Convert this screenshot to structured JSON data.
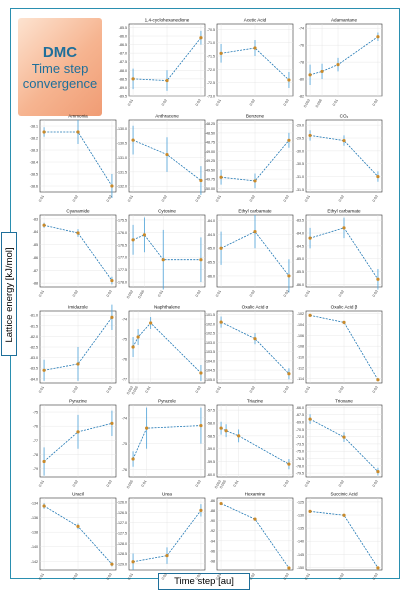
{
  "banner": {
    "main": "DMC",
    "sub1": "Time step",
    "sub2": "convergence"
  },
  "ylabel": "Lattice energy  [kJ/mol]",
  "xlabel": "Time step [au]",
  "colors": {
    "frame": "#2a8fb0",
    "line": "#1f77b4",
    "marker": "#c98a2b",
    "errorbar": "#4aa0d8",
    "banner_text": "#1f6f9a"
  },
  "chart_data": [
    {
      "type": "line",
      "title": "1,4-cyclohexanedione",
      "x": [
        "0.01",
        "0.02",
        "0.03"
      ],
      "xv": [
        0.01,
        0.02,
        0.03
      ],
      "y": [
        -88.5,
        -88.6,
        -86.1
      ],
      "err": [
        0.6,
        0.6,
        0.4
      ],
      "yticks": [
        "-85.5",
        "-86.0",
        "-86.5",
        "-87.0",
        "-87.5",
        "-88.0",
        "-88.5",
        "-89.0",
        "-89.5"
      ],
      "ylim": [
        -89.5,
        -85.3
      ]
    },
    {
      "type": "line",
      "title": "Acetic Acid",
      "x": [
        "0.01",
        "0.02",
        "0.03"
      ],
      "xv": [
        0.01,
        0.02,
        0.03
      ],
      "y": [
        -71.4,
        -71.2,
        -72.4
      ],
      "err": [
        0.35,
        0.3,
        0.3
      ],
      "yticks": [
        "-70.5",
        "-71.0",
        "-71.5",
        "-72.0",
        "-72.5",
        "-73.0"
      ],
      "ylim": [
        -73.0,
        -70.3
      ]
    },
    {
      "type": "line",
      "title": "Adamantane",
      "x": [
        "0.003",
        "0.006",
        "0.01",
        "0.02"
      ],
      "xv": [
        0.003,
        0.006,
        0.01,
        0.02
      ],
      "y": [
        -79.5,
        -79.1,
        -78.3,
        -75.0
      ],
      "err": [
        1.2,
        0.9,
        0.8,
        0.5
      ],
      "yticks": [
        "-74",
        "-76",
        "-78",
        "-80",
        "-82"
      ],
      "ylim": [
        -82,
        -73.5
      ]
    },
    {
      "type": "line",
      "title": "Ammonia",
      "x": [
        "0.01",
        "0.02",
        "0.03"
      ],
      "xv": [
        0.01,
        0.02,
        0.03
      ],
      "y": [
        -38.15,
        -38.15,
        -38.6
      ],
      "err": [
        0.04,
        0.1,
        0.1
      ],
      "yticks": [
        "-38.1",
        "-38.2",
        "-38.3",
        "-38.4",
        "-38.5",
        "-38.6"
      ],
      "ylim": [
        -38.65,
        -38.05
      ]
    },
    {
      "type": "line",
      "title": "Anthracene",
      "x": [
        "0.01",
        "0.02",
        "0.03"
      ],
      "xv": [
        0.01,
        0.02,
        0.03
      ],
      "y": [
        -130.4,
        -130.9,
        -131.8
      ],
      "err": [
        0.5,
        0.6,
        0.5
      ],
      "yticks": [
        "-130.0",
        "-130.5",
        "-131.0",
        "-131.5",
        "-132.0"
      ],
      "ylim": [
        -132.2,
        -129.7
      ]
    },
    {
      "type": "line",
      "title": "Benzene",
      "x": [
        "0.01",
        "0.02",
        "0.03"
      ],
      "xv": [
        0.01,
        0.02,
        0.03
      ],
      "y": [
        -49.7,
        -49.8,
        -48.7
      ],
      "err": [
        0.2,
        0.2,
        0.2
      ],
      "yticks": [
        "-48.25",
        "-48.50",
        "-48.75",
        "-49.00",
        "-49.25",
        "-49.50",
        "-49.75",
        "-50.00"
      ],
      "ylim": [
        -50.1,
        -48.15
      ]
    },
    {
      "type": "line",
      "title": "CO₂",
      "x": [
        "0.01",
        "0.02",
        "0.03"
      ],
      "xv": [
        0.01,
        0.02,
        0.03
      ],
      "y": [
        -29.4,
        -29.6,
        -31.0
      ],
      "err": [
        0.2,
        0.2,
        0.2
      ],
      "yticks": [
        "-29.0",
        "-29.5",
        "-30.0",
        "-30.5",
        "-31.0",
        "-31.5"
      ],
      "ylim": [
        -31.6,
        -28.8
      ]
    },
    {
      "type": "line",
      "title": "Cyanamide",
      "x": [
        "0.01",
        "0.02",
        "0.03"
      ],
      "xv": [
        0.01,
        0.02,
        0.03
      ],
      "y": [
        -83.5,
        -84.1,
        -87.8
      ],
      "err": [
        0.2,
        0.3,
        0.3
      ],
      "yticks": [
        "-83",
        "-84",
        "-85",
        "-86",
        "-87",
        "-88"
      ],
      "ylim": [
        -88.3,
        -82.7
      ]
    },
    {
      "type": "line",
      "title": "Cytosine",
      "x": [
        "0.002",
        "0.005",
        "0.01",
        "0.02"
      ],
      "xv": [
        0.002,
        0.005,
        0.01,
        0.02
      ],
      "y": [
        -176.3,
        -176.1,
        -177.1,
        -177.1
      ],
      "err": [
        0.6,
        0.7,
        1.2,
        0.9
      ],
      "yticks": [
        "-175.5",
        "-176.0",
        "-176.5",
        "-177.0",
        "-177.5",
        "-178.0"
      ],
      "ylim": [
        -178.2,
        -175.3
      ]
    },
    {
      "type": "line",
      "title": "Ethyl carbamate",
      "x": [
        "0.01",
        "0.02",
        "0.03"
      ],
      "xv": [
        0.01,
        0.02,
        0.03
      ],
      "y": [
        -85.0,
        -84.4,
        -86.0
      ],
      "err": [
        0.6,
        0.6,
        0.6
      ],
      "yticks": [
        "-84.0",
        "-84.5",
        "-85.0",
        "-85.5",
        "-86.0"
      ],
      "ylim": [
        -86.4,
        -83.8
      ]
    },
    {
      "type": "line",
      "title": "Ethyl carbamate",
      "x": [
        "0.01",
        "0.02",
        "0.03"
      ],
      "xv": [
        0.01,
        0.02,
        0.03
      ],
      "y": [
        -84.2,
        -83.8,
        -85.8
      ],
      "err": [
        0.4,
        0.4,
        0.4
      ],
      "yticks": [
        "-83.5",
        "-84.0",
        "-84.5",
        "-85.0",
        "-85.5",
        "-86.0"
      ],
      "ylim": [
        -86.1,
        -83.3
      ]
    },
    {
      "type": "line",
      "title": "Imidazole",
      "x": [
        "0.01",
        "0.02",
        "0.03"
      ],
      "xv": [
        0.01,
        0.02,
        0.03
      ],
      "y": [
        -83.6,
        -83.3,
        -81.1
      ],
      "err": [
        0.5,
        0.8,
        0.6
      ],
      "yticks": [
        "-81.0",
        "-81.5",
        "-82.0",
        "-82.5",
        "-83.0",
        "-83.5",
        "-84.0"
      ],
      "ylim": [
        -84.2,
        -80.8
      ]
    },
    {
      "type": "line",
      "title": "Naphthalene",
      "x": [
        "0.003",
        "0.005",
        "0.01",
        "0.03"
      ],
      "xv": [
        0.003,
        0.005,
        0.01,
        0.03
      ],
      "y": [
        -75.4,
        -74.9,
        -74.2,
        -76.7
      ],
      "err": [
        0.5,
        0.4,
        0.3,
        0.4
      ],
      "yticks": [
        "-74",
        "-75",
        "-76",
        "-77"
      ],
      "ylim": [
        -77.2,
        -73.6
      ]
    },
    {
      "type": "line",
      "title": "Oxalic Acid α",
      "x": [
        "0.01",
        "0.02",
        "0.03"
      ],
      "xv": [
        0.01,
        0.02,
        0.03
      ],
      "y": [
        -101.9,
        -102.8,
        -104.7
      ],
      "err": [
        0.3,
        0.3,
        0.3
      ],
      "yticks": [
        "-101.5",
        "-102.0",
        "-102.5",
        "-103.0",
        "-103.5",
        "-104.0",
        "-104.5",
        "-105.0"
      ],
      "ylim": [
        -105.2,
        -101.3
      ]
    },
    {
      "type": "line",
      "title": "Oxalic Acid β",
      "x": [
        "0.01",
        "0.02",
        "0.03"
      ],
      "xv": [
        0.01,
        0.02,
        0.03
      ],
      "y": [
        -102.3,
        -103.6,
        -114.2
      ],
      "err": [
        0.2,
        0.2,
        0.2
      ],
      "yticks": [
        "-102",
        "-104",
        "-106",
        "-108",
        "-110",
        "-112",
        "-114"
      ],
      "ylim": [
        -114.8,
        -101.5
      ]
    },
    {
      "type": "line",
      "title": "Pyrazine",
      "x": [
        "0.01",
        "0.02",
        "0.03"
      ],
      "xv": [
        0.01,
        0.02,
        0.03
      ],
      "y": [
        -78.5,
        -76.4,
        -75.8
      ],
      "err": [
        1.0,
        1.2,
        0.9
      ],
      "yticks": [
        "-75",
        "-76",
        "-77",
        "-78",
        "-79"
      ],
      "ylim": [
        -79.6,
        -74.5
      ]
    },
    {
      "type": "line",
      "title": "Pyrazole",
      "x": [
        "0.005",
        "0.01",
        "0.03"
      ],
      "xv": [
        0.005,
        0.01,
        0.03
      ],
      "y": [
        -75.6,
        -74.4,
        -74.3
      ],
      "err": [
        0.3,
        0.8,
        0.7
      ],
      "yticks": [
        "-74",
        "-75",
        "-76"
      ],
      "ylim": [
        -76.3,
        -73.5
      ]
    },
    {
      "type": "line",
      "title": "Triazine",
      "x": [
        "0.003",
        "0.005",
        "0.01",
        "0.03"
      ],
      "xv": [
        0.003,
        0.005,
        0.01,
        0.03
      ],
      "y": [
        -58.2,
        -58.3,
        -58.5,
        -59.6
      ],
      "err": [
        0.25,
        0.25,
        0.25,
        0.2
      ],
      "yticks": [
        "-57.5",
        "-58.0",
        "-58.5",
        "-59.0",
        "-59.5",
        "-60.0"
      ],
      "ylim": [
        -60.1,
        -57.3
      ]
    },
    {
      "type": "line",
      "title": "Trioxane",
      "x": [
        "0.01",
        "0.02",
        "0.03"
      ],
      "xv": [
        0.01,
        0.02,
        0.03
      ],
      "y": [
        -68.4,
        -72.1,
        -79.2
      ],
      "err": [
        1.0,
        1.0,
        0.8
      ],
      "yticks": [
        "-66.0",
        "-67.5",
        "-69.0",
        "-70.5",
        "-72.0",
        "-73.5",
        "-75.0",
        "-76.5",
        "-78.0",
        "-79.5"
      ],
      "ylim": [
        -80.3,
        -65.5
      ]
    },
    {
      "type": "line",
      "title": "Uracil",
      "x": [
        "0.01",
        "0.02",
        "0.03"
      ],
      "xv": [
        0.01,
        0.02,
        0.03
      ],
      "y": [
        -134.4,
        -137.2,
        -142.4
      ],
      "err": [
        0.4,
        0.4,
        0.3
      ],
      "yticks": [
        "-134",
        "-136",
        "-138",
        "-140",
        "-142"
      ],
      "ylim": [
        -143.2,
        -133.3
      ]
    },
    {
      "type": "line",
      "title": "Urea",
      "x": [
        "0.01",
        "0.02",
        "0.03"
      ],
      "xv": [
        0.01,
        0.02,
        0.03
      ],
      "y": [
        -128.9,
        -128.6,
        -126.4
      ],
      "err": [
        0.4,
        0.4,
        0.3
      ],
      "yticks": [
        "-126.0",
        "-126.5",
        "-127.0",
        "-127.5",
        "-128.0",
        "-128.5",
        "-129.0"
      ],
      "ylim": [
        -129.3,
        -125.8
      ]
    },
    {
      "type": "line",
      "title": "Hexamine",
      "x": [
        "0.01",
        "0.02",
        "0.03"
      ],
      "xv": [
        0.01,
        0.02,
        0.03
      ],
      "y": [
        -86.6,
        -89.7,
        -99.4
      ],
      "err": [
        0.2,
        0.2,
        0.2
      ],
      "yticks": [
        "-86",
        "-88",
        "-90",
        "-92",
        "-94",
        "-96",
        "-98"
      ],
      "ylim": [
        -99.8,
        -85.5
      ]
    },
    {
      "type": "line",
      "title": "Succinic Acid",
      "x": [
        "0.01",
        "0.02",
        "0.03"
      ],
      "xv": [
        0.01,
        0.02,
        0.03
      ],
      "y": [
        -128.6,
        -130.1,
        -150.2
      ],
      "err": [
        0.3,
        0.3,
        0.3
      ],
      "yticks": [
        "-125",
        "-130",
        "-135",
        "-140",
        "-145",
        "-150"
      ],
      "ylim": [
        -151,
        -123.5
      ]
    }
  ]
}
